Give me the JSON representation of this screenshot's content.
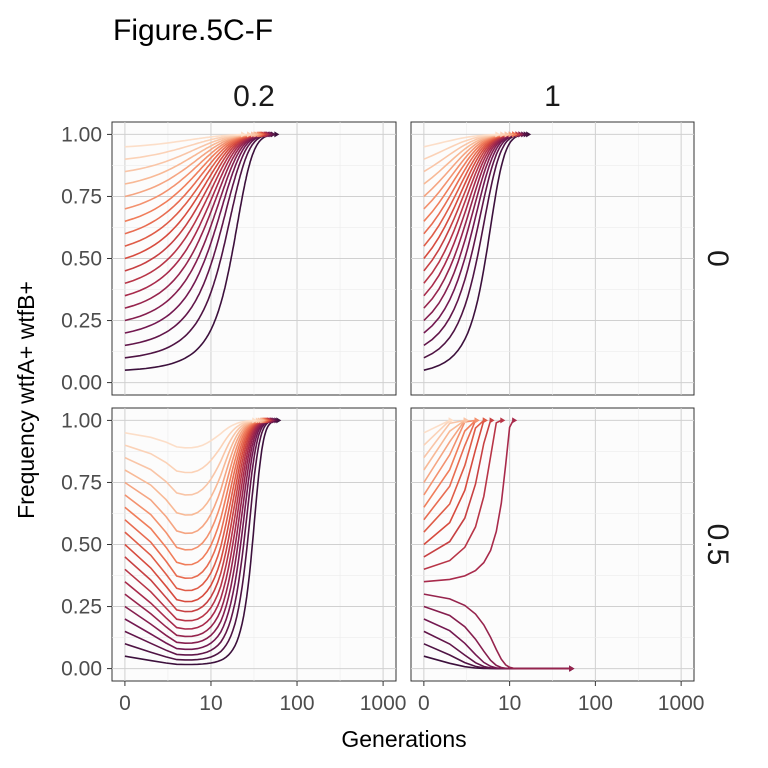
{
  "figure": {
    "title": "Figure.5C-F",
    "xlabel": "Generations",
    "ylabel": "Frequency wtfA+ wtfB+"
  },
  "chart_data": {
    "type": "line",
    "title": "Figure.5C-F",
    "xlabel": "Generations",
    "ylabel": "Frequency wtfA+ wtfB+",
    "x_scale": "log1p",
    "xlim": [
      0,
      1000
    ],
    "ylim": [
      0,
      1
    ],
    "x_ticks": [
      "0",
      "10",
      "100",
      "1000"
    ],
    "y_ticks": [
      "0.00",
      "0.25",
      "0.50",
      "0.75",
      "1.00"
    ],
    "grid": true,
    "color_scale": "rocket (light = high starting frequency, dark = low starting frequency)",
    "facet_columns": [
      "0.2",
      "1"
    ],
    "facet_rows": [
      "0",
      "0.5"
    ],
    "starting_frequencies": [
      0.05,
      0.1,
      0.15,
      0.2,
      0.25,
      0.3,
      0.35,
      0.4,
      0.45,
      0.5,
      0.55,
      0.6,
      0.65,
      0.7,
      0.75,
      0.8,
      0.85,
      0.9,
      0.95
    ],
    "panels": [
      {
        "col": "0.2",
        "row": "0",
        "description": "all trajectories rise monotonically to fixation at 1.00",
        "fixation_generations": [
          110,
          90,
          70,
          60,
          50,
          44,
          38,
          33,
          29,
          26,
          23,
          20,
          18,
          16,
          14,
          12,
          11,
          10,
          9
        ],
        "end_value": 1.0
      },
      {
        "col": "1",
        "row": "0",
        "description": "all trajectories rise monotonically to fixation at 1.00",
        "fixation_generations": [
          25,
          20,
          17,
          14,
          12,
          11,
          10,
          9,
          8,
          7.5,
          7,
          6.5,
          6,
          5.5,
          5,
          4.5,
          4,
          3.5,
          3
        ],
        "end_value": 1.0
      },
      {
        "col": "0.2",
        "row": "0.5",
        "description": "trajectories first dip then rise to fixation at 1.00",
        "minimum_frequency": [
          0.002,
          0.01,
          0.025,
          0.04,
          0.06,
          0.08,
          0.1,
          0.13,
          0.16,
          0.19,
          0.22,
          0.26,
          0.31,
          0.36,
          0.42,
          0.5,
          0.6,
          0.72,
          0.86
        ],
        "generation_of_minimum": [
          15,
          12,
          10,
          9,
          8,
          7,
          6,
          5.5,
          5,
          4.5,
          4,
          3.5,
          3,
          2.8,
          2.6,
          2.4,
          2.2,
          2,
          1.8
        ],
        "fixation_generations": [
          200,
          120,
          100,
          90,
          80,
          70,
          60,
          55,
          50,
          45,
          40,
          35,
          30,
          27,
          24,
          21,
          18,
          15,
          13
        ],
        "end_value": 1.0
      },
      {
        "col": "1",
        "row": "0.5",
        "description": "starting frequencies >= 0.35 rise to fixation at 1.00; starting frequencies <= 0.30 decline and are lost (0.00) near generation 50",
        "fixation_generations": [
          null,
          null,
          null,
          null,
          null,
          null,
          10,
          9,
          8.5,
          8,
          7.5,
          7,
          6.5,
          6,
          5.5,
          5,
          4.5,
          4,
          3.5
        ],
        "loss_generation": [
          50,
          50,
          50,
          50,
          50,
          50,
          null,
          null,
          null,
          null,
          null,
          null,
          null,
          null,
          null,
          null,
          null,
          null,
          null
        ],
        "end_values": [
          0,
          0,
          0,
          0,
          0,
          0,
          1,
          1,
          1,
          1,
          1,
          1,
          1,
          1,
          1,
          1,
          1,
          1,
          1
        ]
      }
    ]
  }
}
